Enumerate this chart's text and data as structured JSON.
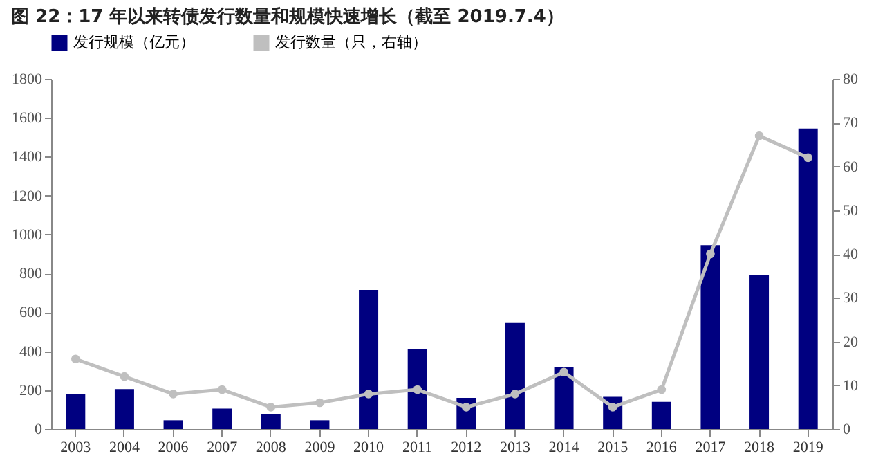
{
  "chart_data": {
    "type": "bar",
    "title": "图 22：17 年以来转债发行数量和规模快速增长（截至 2019.7.4）",
    "categories": [
      "2003",
      "2004",
      "2006",
      "2007",
      "2008",
      "2009",
      "2010",
      "2011",
      "2012",
      "2013",
      "2014",
      "2015",
      "2016",
      "2017",
      "2018",
      "2019"
    ],
    "series": [
      {
        "name": "发行规模（亿元）",
        "color": "#000080",
        "values": [
          180,
          205,
          45,
          105,
          75,
          45,
          715,
          410,
          160,
          545,
          320,
          165,
          140,
          945,
          790,
          1545
        ]
      },
      {
        "name": "发行数量（只，右轴）",
        "type": "line",
        "axis": "y2",
        "color": "#bfbfbf",
        "values": [
          16,
          12,
          8,
          9,
          5,
          6,
          8,
          9,
          5,
          8,
          13,
          5,
          9,
          40,
          67,
          62
        ]
      }
    ],
    "ylim": [
      0,
      1800
    ],
    "yticks": [
      0,
      200,
      400,
      600,
      800,
      1000,
      1200,
      1400,
      1600,
      1800
    ],
    "y2lim": [
      0,
      80
    ],
    "y2ticks": [
      0,
      10,
      20,
      30,
      40,
      50,
      60,
      70,
      80
    ],
    "marker": "circle",
    "legend": "top",
    "grid": false
  }
}
